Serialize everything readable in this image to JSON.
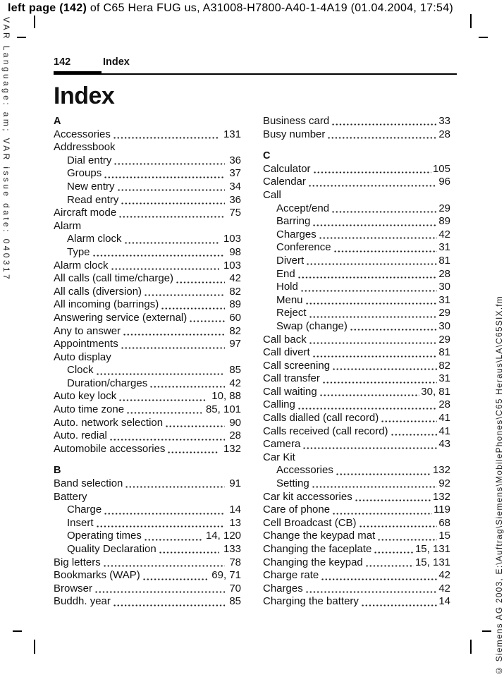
{
  "colors": {
    "background": "#ffffff",
    "text": "#111111"
  },
  "annotation_top": {
    "bold": "left page (142)",
    "rest": " of C65 Hera FUG us, A31008-H7800-A40-1-4A19 (01.04.2004, 17:54)"
  },
  "sidebar_left": "VAR Language: am; VAR issue date: 040317",
  "sidebar_right": "© Siemens AG 2003, E:\\Auftrag\\Siemens\\MobilePhones\\C65 Heraus\\LA\\C65SIX.fm",
  "header": {
    "page_number": "142",
    "section": "Index"
  },
  "title": "Index",
  "columns": [
    {
      "side": "left",
      "items": [
        {
          "t": "section",
          "label": "A"
        },
        {
          "t": "entry",
          "label": "Accessories",
          "page": "131"
        },
        {
          "t": "entry",
          "label": "Addressbook",
          "page": ""
        },
        {
          "t": "entry",
          "label": "Dial entry",
          "page": "36",
          "indent": 1
        },
        {
          "t": "entry",
          "label": "Groups",
          "page": "37",
          "indent": 1
        },
        {
          "t": "entry",
          "label": "New entry",
          "page": "34",
          "indent": 1
        },
        {
          "t": "entry",
          "label": "Read entry",
          "page": "36",
          "indent": 1
        },
        {
          "t": "entry",
          "label": "Aircraft mode",
          "page": "75"
        },
        {
          "t": "entry",
          "label": "Alarm",
          "page": ""
        },
        {
          "t": "entry",
          "label": "Alarm clock",
          "page": "103",
          "indent": 1
        },
        {
          "t": "entry",
          "label": "Type",
          "page": "98",
          "indent": 1
        },
        {
          "t": "entry",
          "label": "Alarm clock",
          "page": "103"
        },
        {
          "t": "entry",
          "label": "All calls (call time/charge)",
          "page": "42"
        },
        {
          "t": "entry",
          "label": "All calls (diversion)",
          "page": "82"
        },
        {
          "t": "entry",
          "label": "All incoming (barrings)",
          "page": "89"
        },
        {
          "t": "entry",
          "label": "Answering service (external)",
          "page": "60"
        },
        {
          "t": "entry",
          "label": "Any to answer",
          "page": "82"
        },
        {
          "t": "entry",
          "label": "Appointments",
          "page": "97"
        },
        {
          "t": "entry",
          "label": "Auto display",
          "page": ""
        },
        {
          "t": "entry",
          "label": "Clock",
          "page": "85",
          "indent": 1
        },
        {
          "t": "entry",
          "label": "Duration/charges",
          "page": "42",
          "indent": 1
        },
        {
          "t": "entry",
          "label": "Auto key lock",
          "page": "10, 88"
        },
        {
          "t": "entry",
          "label": "Auto time zone",
          "page": "85, 101"
        },
        {
          "t": "entry",
          "label": "Auto. network selection",
          "page": "90"
        },
        {
          "t": "entry",
          "label": "Auto. redial",
          "page": "28"
        },
        {
          "t": "entry",
          "label": "Automobile accessories",
          "page": "132"
        },
        {
          "t": "section",
          "label": "B"
        },
        {
          "t": "entry",
          "label": "Band selection",
          "page": "91"
        },
        {
          "t": "entry",
          "label": "Battery",
          "page": ""
        },
        {
          "t": "entry",
          "label": "Charge",
          "page": "14",
          "indent": 1
        },
        {
          "t": "entry",
          "label": "Insert",
          "page": "13",
          "indent": 1
        },
        {
          "t": "entry",
          "label": "Operating times",
          "page": "14, 120",
          "indent": 1
        },
        {
          "t": "entry",
          "label": "Quality Declaration",
          "page": "133",
          "indent": 1
        },
        {
          "t": "entry",
          "label": "Big letters",
          "page": "78"
        },
        {
          "t": "entry",
          "label": "Bookmarks (WAP)",
          "page": "69, 71"
        },
        {
          "t": "entry",
          "label": "Browser",
          "page": "70"
        },
        {
          "t": "entry",
          "label": "Buddh. year",
          "page": "85"
        }
      ]
    },
    {
      "side": "right",
      "items": [
        {
          "t": "entry",
          "label": "Business card",
          "page": "33"
        },
        {
          "t": "entry",
          "label": "Busy number",
          "page": "28"
        },
        {
          "t": "section",
          "label": "C"
        },
        {
          "t": "entry",
          "label": "Calculator",
          "page": "105"
        },
        {
          "t": "entry",
          "label": "Calendar",
          "page": "96"
        },
        {
          "t": "entry",
          "label": "Call",
          "page": ""
        },
        {
          "t": "entry",
          "label": "Accept/end",
          "page": "29",
          "indent": 1
        },
        {
          "t": "entry",
          "label": "Barring",
          "page": "89",
          "indent": 1
        },
        {
          "t": "entry",
          "label": "Charges",
          "page": "42",
          "indent": 1
        },
        {
          "t": "entry",
          "label": "Conference",
          "page": "31",
          "indent": 1
        },
        {
          "t": "entry",
          "label": "Divert",
          "page": "81",
          "indent": 1
        },
        {
          "t": "entry",
          "label": "End",
          "page": "28",
          "indent": 1
        },
        {
          "t": "entry",
          "label": "Hold",
          "page": "30",
          "indent": 1
        },
        {
          "t": "entry",
          "label": "Menu",
          "page": "31",
          "indent": 1
        },
        {
          "t": "entry",
          "label": "Reject",
          "page": "29",
          "indent": 1
        },
        {
          "t": "entry",
          "label": "Swap (change)",
          "page": "30",
          "indent": 1
        },
        {
          "t": "entry",
          "label": "Call back",
          "page": "29"
        },
        {
          "t": "entry",
          "label": "Call divert",
          "page": "81"
        },
        {
          "t": "entry",
          "label": "Call screening",
          "page": "82"
        },
        {
          "t": "entry",
          "label": "Call transfer",
          "page": "31"
        },
        {
          "t": "entry",
          "label": "Call waiting",
          "page": "30, 81"
        },
        {
          "t": "entry",
          "label": "Calling",
          "page": "28"
        },
        {
          "t": "entry",
          "label": "Calls dialled (call record)",
          "page": "41"
        },
        {
          "t": "entry",
          "label": "Calls received (call record)",
          "page": "41"
        },
        {
          "t": "entry",
          "label": "Camera",
          "page": "43"
        },
        {
          "t": "entry",
          "label": "Car Kit",
          "page": ""
        },
        {
          "t": "entry",
          "label": "Accessories",
          "page": "132",
          "indent": 1
        },
        {
          "t": "entry",
          "label": "Setting",
          "page": "92",
          "indent": 1
        },
        {
          "t": "entry",
          "label": "Car kit accessories",
          "page": "132"
        },
        {
          "t": "entry",
          "label": "Care of phone",
          "page": "119"
        },
        {
          "t": "entry",
          "label": "Cell Broadcast (CB)",
          "page": "68"
        },
        {
          "t": "entry",
          "label": "Change the keypad mat",
          "page": "15"
        },
        {
          "t": "entry",
          "label": "Changing the faceplate",
          "page": "15, 131"
        },
        {
          "t": "entry",
          "label": "Changing the keypad",
          "page": "15, 131"
        },
        {
          "t": "entry",
          "label": "Charge rate",
          "page": "42"
        },
        {
          "t": "entry",
          "label": "Charges",
          "page": "42"
        },
        {
          "t": "entry",
          "label": "Charging the battery",
          "page": "14"
        }
      ]
    }
  ]
}
